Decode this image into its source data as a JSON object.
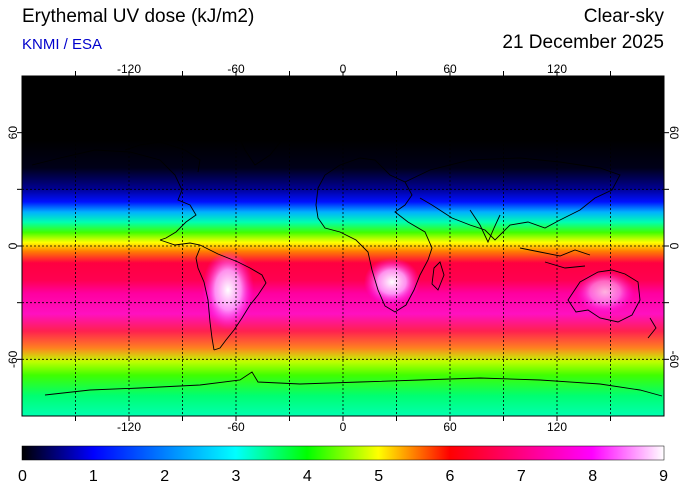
{
  "header": {
    "title": "Erythemal UV dose (kJ/m2)",
    "source": "KNMI / ESA",
    "mode": "Clear-sky",
    "date": "21 December 2025"
  },
  "map": {
    "lon_range": [
      -180,
      180
    ],
    "lat_range": [
      -90,
      90
    ],
    "lon_ticks": [
      -120,
      -60,
      0,
      60,
      120
    ],
    "lat_ticks": [
      60,
      0,
      -60
    ],
    "lon_tick_labels": [
      "-120",
      "-60",
      "0",
      "60",
      "120"
    ],
    "lat_tick_labels": [
      "60",
      "0",
      "-60"
    ],
    "gridlines": "dashed",
    "coastlines": true
  },
  "colorbar": {
    "min": 0,
    "max": 9,
    "labels": [
      "0",
      "1",
      "2",
      "3",
      "4",
      "5",
      "6",
      "7",
      "8",
      "9"
    ],
    "colors": [
      "#000000",
      "#0000ff",
      "#00ffff",
      "#00ff00",
      "#ffff00",
      "#ff0000",
      "#ff00ff",
      "#ffffff"
    ]
  }
}
